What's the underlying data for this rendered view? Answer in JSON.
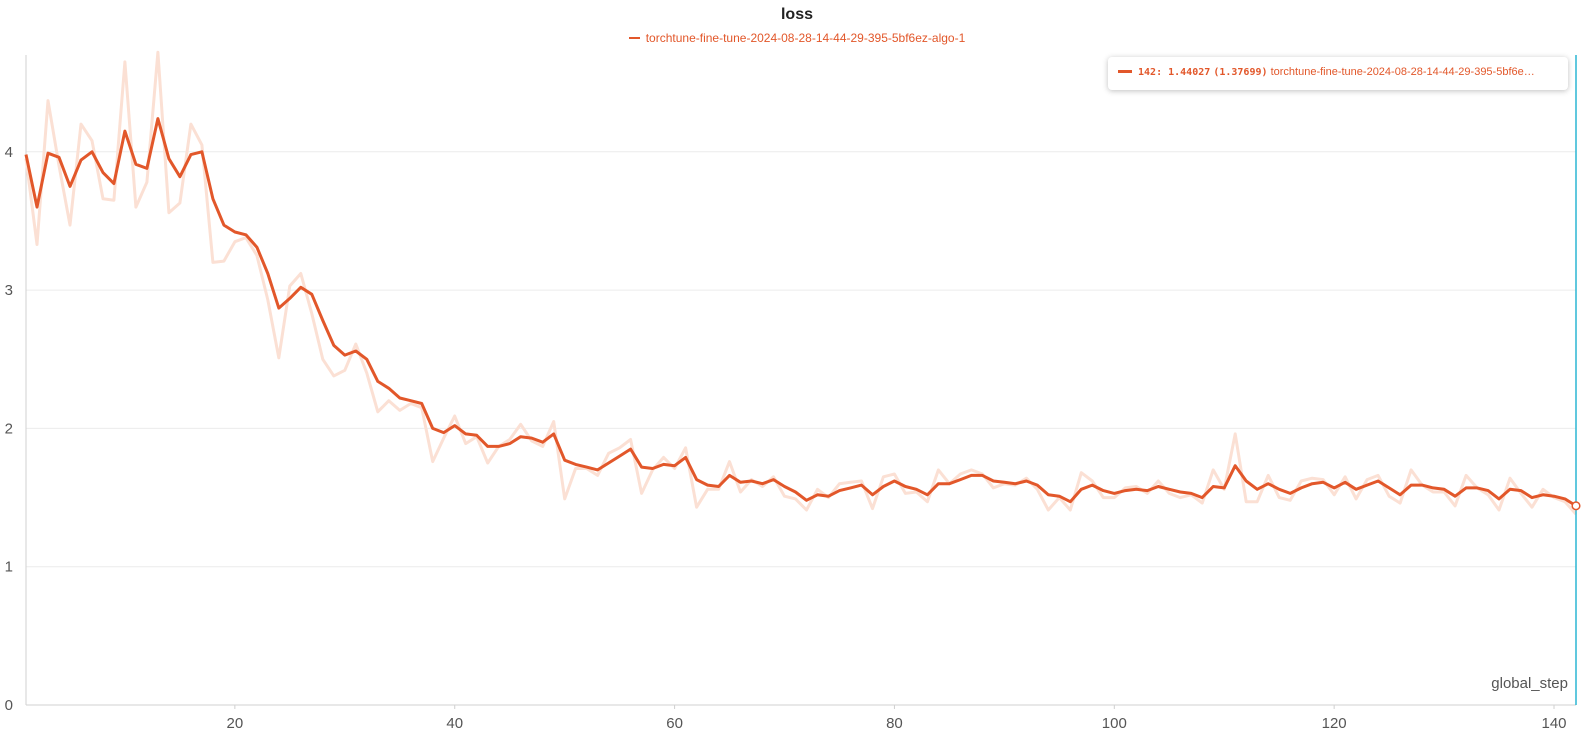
{
  "chart_data": {
    "type": "line",
    "title": "loss",
    "xlabel": "global_step",
    "ylabel": "",
    "xlim": [
      1,
      142
    ],
    "ylim": [
      0,
      4.7
    ],
    "xticks": [
      20,
      40,
      60,
      80,
      100,
      120,
      140
    ],
    "yticks": [
      0,
      1,
      2,
      3,
      4
    ],
    "grid": true,
    "legend_position": "top-center",
    "series": [
      {
        "name": "torchtune-fine-tune-2024-08-28-14-44-29-395-5bf6ez-algo-1",
        "color": "#e2572a",
        "x": [
          1,
          2,
          3,
          4,
          5,
          6,
          7,
          8,
          9,
          10,
          11,
          12,
          13,
          14,
          15,
          16,
          17,
          18,
          19,
          20,
          21,
          22,
          23,
          24,
          25,
          26,
          27,
          28,
          29,
          30,
          31,
          32,
          33,
          34,
          35,
          36,
          37,
          38,
          39,
          40,
          41,
          42,
          43,
          44,
          45,
          46,
          47,
          48,
          49,
          50,
          51,
          52,
          53,
          54,
          55,
          56,
          57,
          58,
          59,
          60,
          61,
          62,
          63,
          64,
          65,
          66,
          67,
          68,
          69,
          70,
          71,
          72,
          73,
          74,
          75,
          76,
          77,
          78,
          79,
          80,
          81,
          82,
          83,
          84,
          85,
          86,
          87,
          88,
          89,
          90,
          91,
          92,
          93,
          94,
          95,
          96,
          97,
          98,
          99,
          100,
          101,
          102,
          103,
          104,
          105,
          106,
          107,
          108,
          109,
          110,
          111,
          112,
          113,
          114,
          115,
          116,
          117,
          118,
          119,
          120,
          121,
          122,
          123,
          124,
          125,
          126,
          127,
          128,
          129,
          130,
          131,
          132,
          133,
          134,
          135,
          136,
          137,
          138,
          139,
          140,
          141,
          142
        ],
        "smoothed": [
          3.98,
          3.6,
          3.99,
          3.96,
          3.75,
          3.94,
          4.0,
          3.85,
          3.77,
          4.15,
          3.91,
          3.88,
          4.24,
          3.95,
          3.82,
          3.98,
          4.0,
          3.66,
          3.47,
          3.42,
          3.4,
          3.31,
          3.12,
          2.87,
          2.94,
          3.02,
          2.97,
          2.78,
          2.6,
          2.53,
          2.56,
          2.5,
          2.34,
          2.29,
          2.22,
          2.2,
          2.18,
          2.0,
          1.97,
          2.02,
          1.96,
          1.95,
          1.87,
          1.87,
          1.89,
          1.94,
          1.93,
          1.9,
          1.96,
          1.77,
          1.74,
          1.72,
          1.7,
          1.75,
          1.8,
          1.85,
          1.72,
          1.71,
          1.74,
          1.73,
          1.79,
          1.63,
          1.59,
          1.58,
          1.66,
          1.61,
          1.62,
          1.6,
          1.63,
          1.58,
          1.54,
          1.48,
          1.52,
          1.51,
          1.55,
          1.57,
          1.59,
          1.52,
          1.58,
          1.62,
          1.58,
          1.56,
          1.52,
          1.6,
          1.6,
          1.63,
          1.66,
          1.66,
          1.62,
          1.61,
          1.6,
          1.62,
          1.59,
          1.52,
          1.51,
          1.47,
          1.56,
          1.59,
          1.55,
          1.53,
          1.55,
          1.56,
          1.55,
          1.58,
          1.56,
          1.54,
          1.53,
          1.5,
          1.58,
          1.57,
          1.73,
          1.62,
          1.56,
          1.6,
          1.56,
          1.53,
          1.57,
          1.6,
          1.61,
          1.57,
          1.61,
          1.56,
          1.59,
          1.62,
          1.57,
          1.52,
          1.59,
          1.59,
          1.57,
          1.56,
          1.51,
          1.57,
          1.57,
          1.55,
          1.49,
          1.56,
          1.55,
          1.5,
          1.52,
          1.51,
          1.49,
          1.44
        ],
        "raw": [
          3.95,
          3.33,
          4.37,
          3.9,
          3.47,
          4.2,
          4.08,
          3.66,
          3.65,
          4.65,
          3.6,
          3.78,
          4.72,
          3.56,
          3.63,
          4.2,
          4.05,
          3.2,
          3.21,
          3.35,
          3.38,
          3.25,
          2.93,
          2.51,
          3.03,
          3.12,
          2.83,
          2.5,
          2.38,
          2.42,
          2.61,
          2.4,
          2.12,
          2.2,
          2.13,
          2.18,
          2.15,
          1.76,
          1.93,
          2.09,
          1.89,
          1.94,
          1.75,
          1.87,
          1.92,
          2.03,
          1.91,
          1.87,
          2.05,
          1.49,
          1.71,
          1.71,
          1.66,
          1.82,
          1.86,
          1.92,
          1.53,
          1.7,
          1.79,
          1.71,
          1.86,
          1.43,
          1.56,
          1.56,
          1.76,
          1.54,
          1.63,
          1.58,
          1.65,
          1.51,
          1.49,
          1.41,
          1.56,
          1.5,
          1.6,
          1.61,
          1.62,
          1.42,
          1.65,
          1.67,
          1.53,
          1.54,
          1.47,
          1.7,
          1.6,
          1.67,
          1.7,
          1.67,
          1.57,
          1.6,
          1.59,
          1.64,
          1.56,
          1.41,
          1.5,
          1.41,
          1.68,
          1.62,
          1.5,
          1.5,
          1.57,
          1.58,
          1.53,
          1.62,
          1.53,
          1.5,
          1.52,
          1.46,
          1.7,
          1.56,
          1.96,
          1.47,
          1.47,
          1.66,
          1.5,
          1.48,
          1.62,
          1.64,
          1.63,
          1.52,
          1.65,
          1.49,
          1.63,
          1.66,
          1.51,
          1.46,
          1.7,
          1.59,
          1.54,
          1.54,
          1.44,
          1.66,
          1.57,
          1.52,
          1.41,
          1.64,
          1.53,
          1.43,
          1.56,
          1.5,
          1.47,
          1.38
        ]
      }
    ],
    "hover": {
      "step_label": "142",
      "value_label": "1.44027",
      "raw_label": "(1.37699)",
      "run_label": "torchtune-fine-tune-2024-08-28-14-44-29-395-5bf6e…",
      "x": 142,
      "y": 1.44027
    }
  }
}
